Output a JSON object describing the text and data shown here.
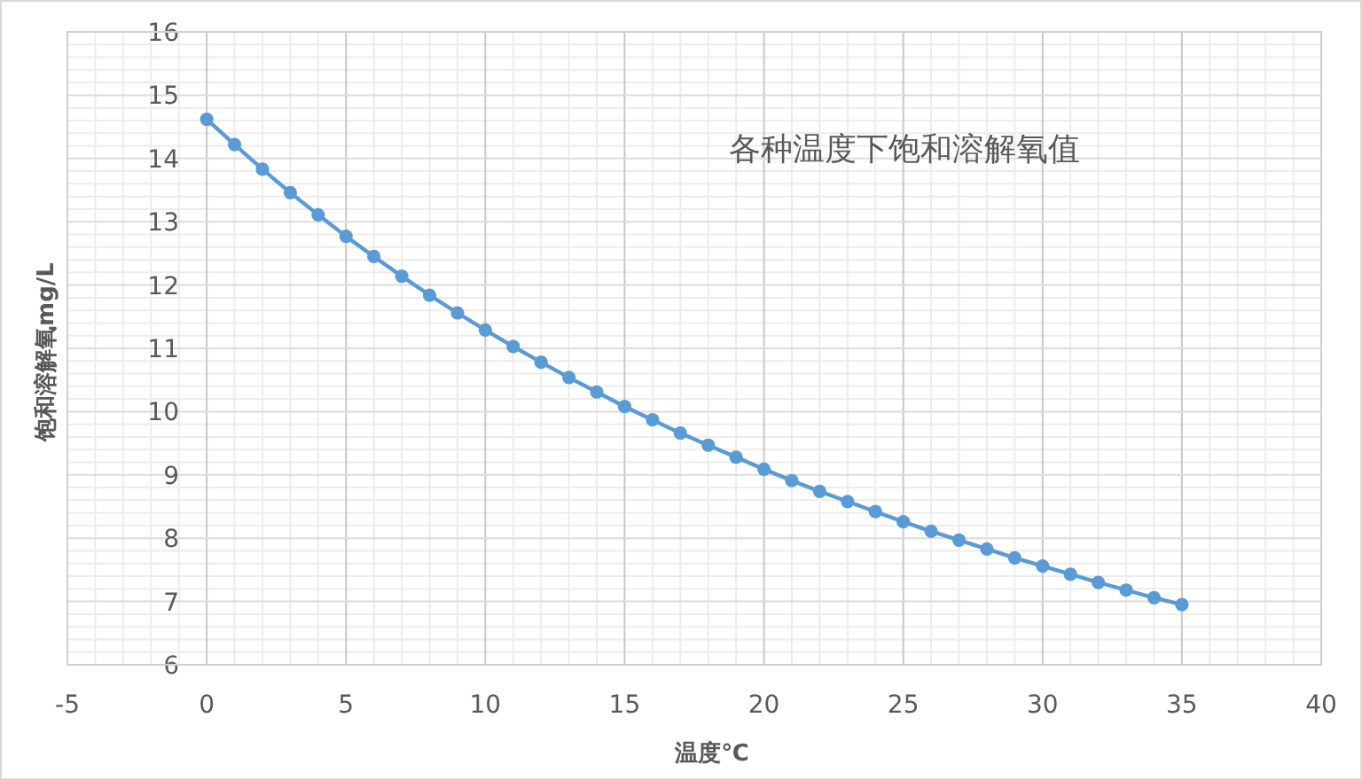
{
  "chart_data": {
    "type": "line",
    "title": "各种温度下饱和溶解氧值",
    "xlabel": "温度℃",
    "ylabel": "饱和溶解氧mg/L",
    "x": [
      0,
      1,
      2,
      3,
      4,
      5,
      6,
      7,
      8,
      9,
      10,
      11,
      12,
      13,
      14,
      15,
      16,
      17,
      18,
      19,
      20,
      21,
      22,
      23,
      24,
      25,
      26,
      27,
      28,
      29,
      30,
      31,
      32,
      33,
      34,
      35
    ],
    "series": [
      {
        "color": "#5b9bd5",
        "values": [
          14.62,
          14.22,
          13.83,
          13.46,
          13.11,
          12.77,
          12.45,
          12.14,
          11.84,
          11.56,
          11.29,
          11.03,
          10.78,
          10.54,
          10.31,
          10.08,
          9.87,
          9.66,
          9.47,
          9.28,
          9.09,
          8.91,
          8.74,
          8.58,
          8.42,
          8.26,
          8.11,
          7.97,
          7.83,
          7.69,
          7.56,
          7.43,
          7.3,
          7.18,
          7.06,
          6.95
        ]
      }
    ],
    "xlim": [
      -5,
      40
    ],
    "xticks": [
      -5,
      0,
      5,
      10,
      15,
      20,
      25,
      30,
      35,
      40
    ],
    "ylim": [
      6,
      16
    ],
    "yticks": [
      6,
      7,
      8,
      9,
      10,
      11,
      12,
      13,
      14,
      15,
      16
    ],
    "grid": true,
    "marker": "circle",
    "line_style": "solid"
  }
}
